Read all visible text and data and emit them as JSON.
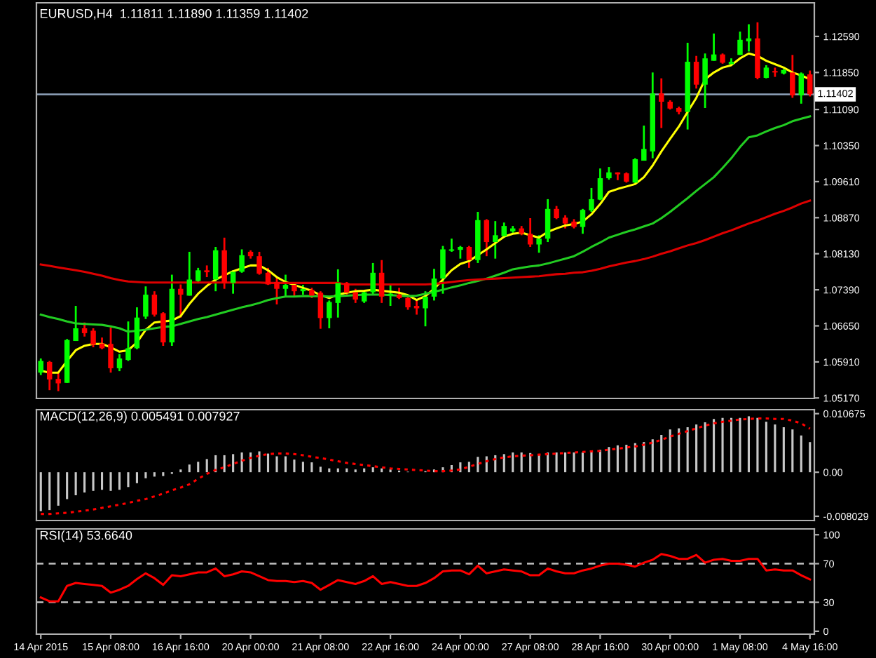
{
  "chart_data": [
    {
      "type": "candlestick",
      "title": "EURUSD,H4  1.11811 1.11890 1.11359 1.11402",
      "categories": [
        null,
        null,
        null,
        null,
        null,
        null,
        null,
        null,
        null,
        null,
        null,
        null,
        null,
        null,
        null,
        null,
        null,
        null,
        null,
        null,
        null,
        null,
        null,
        null,
        null,
        null,
        null,
        null,
        null,
        null,
        null,
        null,
        null,
        null,
        null,
        null,
        null,
        null,
        null,
        null,
        null,
        null,
        null,
        null,
        null,
        null,
        null,
        null,
        null,
        null,
        null,
        null,
        null,
        null,
        null,
        null,
        null,
        null,
        null,
        null,
        null,
        null,
        null,
        null,
        null,
        null,
        null,
        null,
        null,
        null,
        null,
        null,
        null,
        null,
        null,
        null,
        null,
        null,
        null,
        null,
        null,
        null,
        null,
        null,
        null,
        null,
        null,
        null,
        null
      ],
      "ohlc": [
        [
          1.0569,
          1.0598,
          1.0564,
          1.0593
        ],
        [
          1.0591,
          1.0593,
          1.0533,
          1.0555
        ],
        [
          1.0556,
          1.0569,
          1.0531,
          1.0547
        ],
        [
          1.0548,
          1.0638,
          1.0548,
          1.0636
        ],
        [
          1.0634,
          1.0706,
          1.0634,
          1.066
        ],
        [
          1.066,
          1.0672,
          1.0643,
          1.065
        ],
        [
          1.0655,
          1.066,
          1.0621,
          1.0626
        ],
        [
          1.0629,
          1.0641,
          1.0617,
          1.0619
        ],
        [
          1.0628,
          1.0662,
          1.0569,
          1.0578
        ],
        [
          1.0578,
          1.0607,
          1.0572,
          1.0598
        ],
        [
          1.0595,
          1.0674,
          1.0593,
          1.0619
        ],
        [
          1.0619,
          1.0703,
          1.0617,
          1.0682
        ],
        [
          1.0684,
          1.0746,
          1.0679,
          1.0729
        ],
        [
          1.0729,
          1.0736,
          1.0684,
          1.0688
        ],
        [
          1.0691,
          1.0693,
          1.0624,
          1.0631
        ],
        [
          1.0631,
          1.077,
          1.0624,
          1.0741
        ],
        [
          1.0741,
          1.075,
          1.0682,
          1.0729
        ],
        [
          1.0727,
          1.0817,
          1.0727,
          1.076
        ],
        [
          1.0757,
          1.0784,
          1.0752,
          1.0779
        ],
        [
          1.0779,
          1.0789,
          1.0765,
          1.0775
        ],
        [
          1.076,
          1.0827,
          1.0736,
          1.082
        ],
        [
          1.082,
          1.0846,
          1.0741,
          1.0753
        ],
        [
          1.0753,
          1.0779,
          1.0731,
          1.0776
        ],
        [
          1.0776,
          1.0822,
          1.0774,
          1.081
        ],
        [
          1.0817,
          1.082,
          1.0803,
          1.0808
        ],
        [
          1.0808,
          1.0817,
          1.077,
          1.0772
        ],
        [
          1.0774,
          1.0784,
          1.0749,
          1.075
        ],
        [
          1.0755,
          1.0765,
          1.0709,
          1.0741
        ],
        [
          1.0741,
          1.077,
          1.0725,
          1.0749
        ],
        [
          1.0749,
          1.0755,
          1.0724,
          1.0736
        ],
        [
          1.0736,
          1.0749,
          1.0729,
          1.0741
        ],
        [
          1.0739,
          1.0743,
          1.0722,
          1.0727
        ],
        [
          1.0733,
          1.0736,
          1.0659,
          1.0681
        ],
        [
          1.0681,
          1.0717,
          1.066,
          1.0714
        ],
        [
          1.0712,
          1.0781,
          1.0682,
          1.0753
        ],
        [
          1.0753,
          1.0755,
          1.0729,
          1.0733
        ],
        [
          1.0734,
          1.0741,
          1.0712,
          1.0719
        ],
        [
          1.0715,
          1.0736,
          1.0712,
          1.0734
        ],
        [
          1.0734,
          1.0794,
          1.0729,
          1.0774
        ],
        [
          1.0774,
          1.08,
          1.0712,
          1.0725
        ],
        [
          1.0727,
          1.0749,
          1.0706,
          1.0731
        ],
        [
          1.0729,
          1.0743,
          1.072,
          1.0722
        ],
        [
          1.0722,
          1.0724,
          1.0698,
          1.0703
        ],
        [
          1.0706,
          1.0717,
          1.0688,
          1.0701
        ],
        [
          1.0701,
          1.0736,
          1.0664,
          1.0725
        ],
        [
          1.0725,
          1.0782,
          1.0717,
          1.0762
        ],
        [
          1.0762,
          1.0829,
          1.0731,
          1.0822
        ],
        [
          1.0819,
          1.0844,
          1.0817,
          1.0822
        ],
        [
          1.0821,
          1.0829,
          1.0803,
          1.0827
        ],
        [
          1.0827,
          1.0829,
          1.0784,
          1.08
        ],
        [
          1.08,
          1.0899,
          1.0794,
          1.0882
        ],
        [
          1.0882,
          1.0884,
          1.0808,
          1.0837
        ],
        [
          1.0837,
          1.088,
          1.0803,
          1.0851
        ],
        [
          1.0849,
          1.0877,
          1.0846,
          1.087
        ],
        [
          1.0859,
          1.087,
          1.0856,
          1.0865
        ],
        [
          1.0865,
          1.087,
          1.0851,
          1.0854
        ],
        [
          1.0854,
          1.0886,
          1.0827,
          1.0832
        ],
        [
          1.0832,
          1.0851,
          1.0815,
          1.0844
        ],
        [
          1.0844,
          1.0925,
          1.0837,
          1.0905
        ],
        [
          1.0905,
          1.0911,
          1.0884,
          1.0886
        ],
        [
          1.0887,
          1.0892,
          1.0865,
          1.0875
        ],
        [
          1.0879,
          1.0884,
          1.0865,
          1.0868
        ],
        [
          1.0868,
          1.0905,
          1.0854,
          1.0903
        ],
        [
          1.0902,
          1.0948,
          1.0899,
          1.0925
        ],
        [
          1.0924,
          1.0988,
          1.0923,
          1.0968
        ],
        [
          1.0968,
          1.0991,
          1.0965,
          1.098
        ],
        [
          1.098,
          1.098,
          1.0964,
          1.0976
        ],
        [
          1.0978,
          1.098,
          1.0959,
          1.0961
        ],
        [
          1.0959,
          1.1009,
          1.0958,
          1.1007
        ],
        [
          1.1004,
          1.1076,
          1.1004,
          1.1028
        ],
        [
          1.1023,
          1.1185,
          1.1009,
          1.1142
        ],
        [
          1.1142,
          1.1173,
          1.1071,
          1.1125
        ],
        [
          1.1125,
          1.1128,
          1.1109,
          1.1111
        ],
        [
          1.1112,
          1.1115,
          1.1099,
          1.1104
        ],
        [
          1.1104,
          1.1246,
          1.1068,
          1.1207
        ],
        [
          1.1207,
          1.1219,
          1.1152,
          1.116
        ],
        [
          1.116,
          1.1224,
          1.1112,
          1.1214
        ],
        [
          1.1209,
          1.1265,
          1.1209,
          1.1222
        ],
        [
          1.1222,
          1.1224,
          1.1203,
          1.1205
        ],
        [
          1.1202,
          1.1214,
          1.12,
          1.1207
        ],
        [
          1.1221,
          1.1269,
          1.1221,
          1.1252
        ],
        [
          1.1249,
          1.1284,
          1.1228,
          1.1255
        ],
        [
          1.1255,
          1.1288,
          1.1171,
          1.1174
        ],
        [
          1.1174,
          1.12,
          1.1173,
          1.1195
        ],
        [
          1.1188,
          1.1195,
          1.1176,
          1.1185
        ],
        [
          1.1183,
          1.1192,
          1.1181,
          1.119
        ],
        [
          1.1185,
          1.1221,
          1.1133,
          1.1138
        ],
        [
          1.1138,
          1.1185,
          1.1121,
          1.1183
        ],
        [
          1.11811,
          1.1189,
          1.11359,
          1.11402
        ]
      ],
      "colors": [
        "#00ff00",
        "#ff0000",
        "#ff0000",
        "#00ff00",
        "#00ff00",
        "#ff0000",
        "#ff0000",
        "#ff0000",
        "#ff0000",
        "#00ff00",
        "#00ff00",
        "#00ff00",
        "#00ff00",
        "#ff0000",
        "#ff0000",
        "#00ff00",
        "#ff0000",
        "#00ff00",
        "#00ff00",
        "#ff0000",
        "#00ff00",
        "#ff0000",
        "#00ff00",
        "#00ff00",
        "#ff0000",
        "#ff0000",
        "#ff0000",
        "#ff0000",
        "#00ff00",
        "#ff0000",
        "#00ff00",
        "#ff0000",
        "#ff0000",
        "#00ff00",
        "#00ff00",
        "#ff0000",
        "#ff0000",
        "#00ff00",
        "#00ff00",
        "#ff0000",
        "#00ff00",
        "#ff0000",
        "#ff0000",
        "#ff0000",
        "#00ff00",
        "#00ff00",
        "#00ff00",
        "#00ff00",
        "#00ff00",
        "#ff0000",
        "#00ff00",
        "#ff0000",
        "#00ff00",
        "#00ff00",
        "#00ff00",
        "#ff0000",
        "#ff0000",
        "#00ff00",
        "#00ff00",
        "#ff0000",
        "#ff0000",
        "#ff0000",
        "#00ff00",
        "#00ff00",
        "#00ff00",
        "#00ff00",
        "#ff0000",
        "#ff0000",
        "#00ff00",
        "#00ff00",
        "#00ff00",
        "#ff0000",
        "#ff0000",
        "#ff0000",
        "#00ff00",
        "#ff0000",
        "#00ff00",
        "#00ff00",
        "#ff0000",
        "#00ff00",
        "#00ff00",
        "#00ff00",
        "#ff0000",
        "#00ff00",
        "#ff0000",
        "#00ff00",
        "#ff0000",
        "#00ff00",
        "#ff0000"
      ],
      "series": [
        {
          "type": "line",
          "color": "#ffff00",
          "values": [
            1.0573,
            1.0569,
            1.0569,
            1.0593,
            1.0615,
            1.0624,
            1.0628,
            1.0628,
            1.0621,
            1.0612,
            1.0615,
            1.0631,
            1.0657,
            1.0672,
            1.0674,
            1.0676,
            1.0685,
            1.071,
            1.0731,
            1.0747,
            1.076,
            1.0769,
            1.0777,
            1.0783,
            1.0789,
            1.0789,
            1.0779,
            1.0765,
            1.0755,
            1.0749,
            1.0743,
            1.0737,
            1.0728,
            1.0722,
            1.0729,
            1.0733,
            1.0736,
            1.0737,
            1.0739,
            1.0737,
            1.0735,
            1.0733,
            1.0728,
            1.0718,
            1.0726,
            1.0741,
            1.076,
            1.0779,
            1.0792,
            1.0798,
            1.081,
            1.0822,
            1.0835,
            1.0848,
            1.0854,
            1.0856,
            1.0851,
            1.0846,
            1.0858,
            1.0865,
            1.0871,
            1.0874,
            1.0879,
            1.0894,
            1.0915,
            1.094,
            1.0946,
            1.0951,
            1.0956,
            1.097,
            1.0994,
            1.1023,
            1.1049,
            1.1074,
            1.1104,
            1.1133,
            1.1171,
            1.1185,
            1.1195,
            1.12,
            1.1214,
            1.1224,
            1.1219,
            1.1209,
            1.1202,
            1.1195,
            1.1185,
            1.1179,
            1.1171
          ]
        },
        {
          "type": "line",
          "color": "#22cc22",
          "values": [
            1.0688,
            1.0683,
            1.0679,
            1.0674,
            1.067,
            1.0669,
            1.0668,
            1.0667,
            1.0664,
            1.066,
            1.0653,
            1.0655,
            1.0657,
            1.066,
            1.0663,
            1.0664,
            1.0669,
            1.0674,
            1.0679,
            1.0683,
            1.0688,
            1.0693,
            1.0698,
            1.0703,
            1.0707,
            1.0712,
            1.0718,
            1.0722,
            1.0725,
            1.0725,
            1.0726,
            1.0726,
            1.0726,
            1.0725,
            1.0726,
            1.0727,
            1.0728,
            1.0729,
            1.0729,
            1.0729,
            1.0728,
            1.0727,
            1.0726,
            1.0727,
            1.0731,
            1.0735,
            1.0739,
            1.0744,
            1.0748,
            1.0753,
            1.0757,
            1.0762,
            1.0768,
            1.0774,
            1.0781,
            1.0784,
            1.0787,
            1.0789,
            1.0793,
            1.0798,
            1.0803,
            1.0808,
            1.0817,
            1.0827,
            1.0836,
            1.0846,
            1.0852,
            1.0858,
            1.0863,
            1.0869,
            1.0875,
            1.0886,
            1.0899,
            1.0913,
            1.0927,
            1.0942,
            1.0956,
            1.097,
            1.0989,
            1.1009,
            1.1032,
            1.1052,
            1.1056,
            1.1064,
            1.1071,
            1.1077,
            1.1085,
            1.109,
            1.1095
          ]
        },
        {
          "type": "line",
          "color": "#dd0000",
          "values": [
            1.0791,
            1.0788,
            1.0785,
            1.0782,
            1.0779,
            1.0776,
            1.0772,
            1.0768,
            1.0763,
            1.0759,
            1.0756,
            1.0755,
            1.0754,
            1.0754,
            1.0754,
            1.0754,
            1.0754,
            1.0754,
            1.0754,
            1.0754,
            1.0754,
            1.0754,
            1.0754,
            1.0754,
            1.0754,
            1.0754,
            1.0753,
            1.0753,
            1.0753,
            1.0753,
            1.0753,
            1.0753,
            1.0753,
            1.0753,
            1.0753,
            1.075,
            1.075,
            1.075,
            1.075,
            1.075,
            1.075,
            1.075,
            1.075,
            1.075,
            1.075,
            1.0751,
            1.0753,
            1.0755,
            1.0757,
            1.0759,
            1.076,
            1.0761,
            1.0762,
            1.0763,
            1.0764,
            1.0765,
            1.0766,
            1.0767,
            1.0769,
            1.0771,
            1.0772,
            1.0774,
            1.0775,
            1.0778,
            1.0782,
            1.0787,
            1.0791,
            1.0795,
            1.0798,
            1.0802,
            1.0807,
            1.0813,
            1.0818,
            1.0824,
            1.083,
            1.0835,
            1.0841,
            1.0848,
            1.0855,
            1.0861,
            1.0868,
            1.0875,
            1.0881,
            1.0888,
            1.0895,
            1.0901,
            1.0908,
            1.0916,
            1.0922
          ]
        }
      ],
      "ylim": [
        1.0516,
        1.1328
      ],
      "yticks": [
        {
          "value": 1.1259,
          "label": "1.12590"
        },
        {
          "value": 1.1185,
          "label": "1.11850"
        },
        {
          "value": 1.1109,
          "label": "1.11090"
        },
        {
          "value": 1.1035,
          "label": "1.10350"
        },
        {
          "value": 1.0961,
          "label": "1.09610"
        },
        {
          "value": 1.0887,
          "label": "1.08870"
        },
        {
          "value": 1.0813,
          "label": "1.08130"
        },
        {
          "value": 1.0739,
          "label": "1.07390"
        },
        {
          "value": 1.0665,
          "label": "1.06650"
        },
        {
          "value": 1.0591,
          "label": "1.05910"
        },
        {
          "value": 1.0517,
          "label": "1.05170"
        }
      ],
      "ref_lines": [
        {
          "axis": "y",
          "value": 1.11402,
          "label": "1.11402",
          "color": "#8fa3bb"
        }
      ],
      "tick_labels": "y"
    },
    {
      "type": "bar",
      "title": "MACD(12,26,9) 0.005491 0.007927",
      "categories": [
        null,
        null,
        null,
        null,
        null,
        null,
        null,
        null,
        null,
        null,
        null,
        null,
        null,
        null,
        null,
        null,
        null,
        null,
        null,
        null,
        null,
        null,
        null,
        null,
        null,
        null,
        null,
        null,
        null,
        null,
        null,
        null,
        null,
        null,
        null,
        null,
        null,
        null,
        null,
        null,
        null,
        null,
        null,
        null,
        null,
        null,
        null,
        null,
        null,
        null,
        null,
        null,
        null,
        null,
        null,
        null,
        null,
        null,
        null,
        null,
        null,
        null,
        null,
        null,
        null,
        null,
        null,
        null,
        null,
        null,
        null,
        null,
        null,
        null,
        null,
        null,
        null,
        null,
        null,
        null,
        null,
        null,
        null,
        null,
        null,
        null,
        null,
        null,
        null
      ],
      "series": [
        {
          "type": "bar",
          "color": "#c8c8c8",
          "values": [
            -0.0071,
            -0.0069,
            -0.0061,
            -0.0049,
            -0.0042,
            -0.0037,
            -0.0034,
            -0.0032,
            -0.0034,
            -0.0032,
            -0.0027,
            -0.002,
            -0.0011,
            -0.0008,
            -0.0007,
            -0.0003,
            0.0005,
            0.0014,
            0.0019,
            0.0024,
            0.0031,
            0.0031,
            0.0033,
            0.0036,
            0.0036,
            0.0038,
            0.0034,
            0.0029,
            0.0029,
            0.0023,
            0.0019,
            0.0018,
            0.001,
            0.0007,
            0.0007,
            0.0007,
            0.0005,
            0.0007,
            0.0009,
            0.0007,
            0.0005,
            0.0003,
            0.0001,
            null,
            0.0002,
            0.0005,
            0.0009,
            0.0013,
            0.0018,
            0.0019,
            0.0028,
            0.0029,
            0.0031,
            0.0033,
            0.0036,
            0.0036,
            0.0035,
            0.0033,
            0.0036,
            0.0036,
            0.0036,
            0.0036,
            0.0036,
            0.0038,
            0.0041,
            0.0046,
            0.0049,
            0.005,
            0.0053,
            0.0055,
            0.006,
            0.0068,
            0.0078,
            0.008,
            0.0082,
            0.0087,
            0.0091,
            0.0097,
            0.0099,
            0.0099,
            0.0099,
            0.0102,
            0.0099,
            0.0092,
            0.0087,
            0.0082,
            0.0078,
            0.0067,
            0.005491
          ]
        },
        {
          "type": "line",
          "color": "#ff0000",
          "line_style": "dotted",
          "values": [
            -0.0076,
            -0.0076,
            -0.0075,
            -0.0074,
            -0.0072,
            -0.007,
            -0.0068,
            -0.0065,
            -0.0062,
            -0.0059,
            -0.0056,
            -0.0052,
            -0.0049,
            -0.0044,
            -0.0039,
            -0.0033,
            -0.0028,
            -0.0022,
            -0.0012,
            -0.0003,
            0.0004,
            0.0009,
            0.0015,
            0.0021,
            0.0026,
            0.003,
            0.0033,
            0.0034,
            0.0034,
            0.0033,
            0.0031,
            0.0028,
            0.0026,
            0.0023,
            0.002,
            0.0017,
            0.0015,
            0.0013,
            0.0011,
            0.0009,
            0.0007,
            0.0006,
            0.0005,
            0.0004,
            0.0003,
            0.0002,
            0.0002,
            0.0003,
            0.0005,
            0.001,
            0.0015,
            0.002,
            0.0024,
            0.0027,
            0.0029,
            0.003,
            0.0031,
            0.0032,
            0.0033,
            0.0034,
            0.0035,
            0.0036,
            0.0037,
            0.0038,
            0.0039,
            0.0041,
            0.0043,
            0.0045,
            0.0047,
            0.005,
            0.0054,
            0.0059,
            0.0065,
            0.007,
            0.0075,
            0.008,
            0.0085,
            0.0089,
            0.0092,
            0.0094,
            0.0096,
            0.0097,
            0.0098,
            0.0098,
            0.0097,
            0.0097,
            0.0094,
            0.0089,
            0.007927
          ]
        }
      ],
      "ylim": [
        -0.0088,
        0.0114
      ],
      "yticks": [
        {
          "value": 0.010675,
          "label": "0.010675"
        },
        {
          "value": 0,
          "label": "0.00"
        },
        {
          "value": -0.008029,
          "label": "-0.008029"
        }
      ],
      "tick_labels": "y"
    },
    {
      "type": "line",
      "title": "RSI(14) 53.6640",
      "categories": [
        "14 Apr 2015",
        null,
        null,
        null,
        null,
        null,
        null,
        null,
        "15 Apr 08:00",
        null,
        null,
        null,
        null,
        null,
        null,
        null,
        "16 Apr 16:00",
        null,
        null,
        null,
        null,
        null,
        null,
        null,
        "20 Apr 00:00",
        null,
        null,
        null,
        null,
        null,
        null,
        null,
        "21 Apr 08:00",
        null,
        null,
        null,
        null,
        null,
        null,
        null,
        "22 Apr 16:00",
        null,
        null,
        null,
        null,
        null,
        null,
        null,
        "24 Apr 00:00",
        null,
        null,
        null,
        null,
        null,
        null,
        null,
        "27 Apr 08:00",
        null,
        null,
        null,
        null,
        null,
        null,
        null,
        "28 Apr 16:00",
        null,
        null,
        null,
        null,
        null,
        null,
        null,
        "30 Apr 00:00",
        null,
        null,
        null,
        null,
        null,
        null,
        null,
        "1 May 08:00",
        null,
        null,
        null,
        null,
        null,
        null,
        null,
        "4 May 16:00"
      ],
      "series": [
        {
          "color": "#ff0000",
          "values": [
            35,
            31,
            31,
            47,
            50,
            49,
            48,
            47,
            40,
            43,
            47,
            54,
            60,
            55,
            48,
            58,
            57,
            59,
            61,
            61,
            65,
            57,
            59,
            62,
            61,
            57,
            53,
            52,
            52,
            51,
            52,
            50,
            43,
            48,
            53,
            51,
            49,
            52,
            57,
            49,
            51,
            49,
            47,
            47,
            50,
            55,
            62,
            63,
            63,
            59,
            68,
            60,
            62,
            64,
            63,
            62,
            58,
            58,
            65,
            62,
            60,
            60,
            63,
            65,
            68,
            70,
            70,
            69,
            67,
            71,
            74,
            80,
            78,
            75,
            75,
            79,
            71,
            74,
            75,
            73,
            73,
            75,
            75,
            63,
            64,
            63,
            63,
            58,
            53.664
          ]
        }
      ],
      "ylim": [
        -3,
        106
      ],
      "yticks": [
        100,
        70,
        30,
        0
      ],
      "ref_lines": [
        {
          "axis": "y",
          "value": 70,
          "color": "#c0c0c0",
          "line_style": "dashed"
        },
        {
          "axis": "y",
          "value": 30,
          "color": "#c0c0c0",
          "line_style": "dashed"
        }
      ]
    }
  ]
}
